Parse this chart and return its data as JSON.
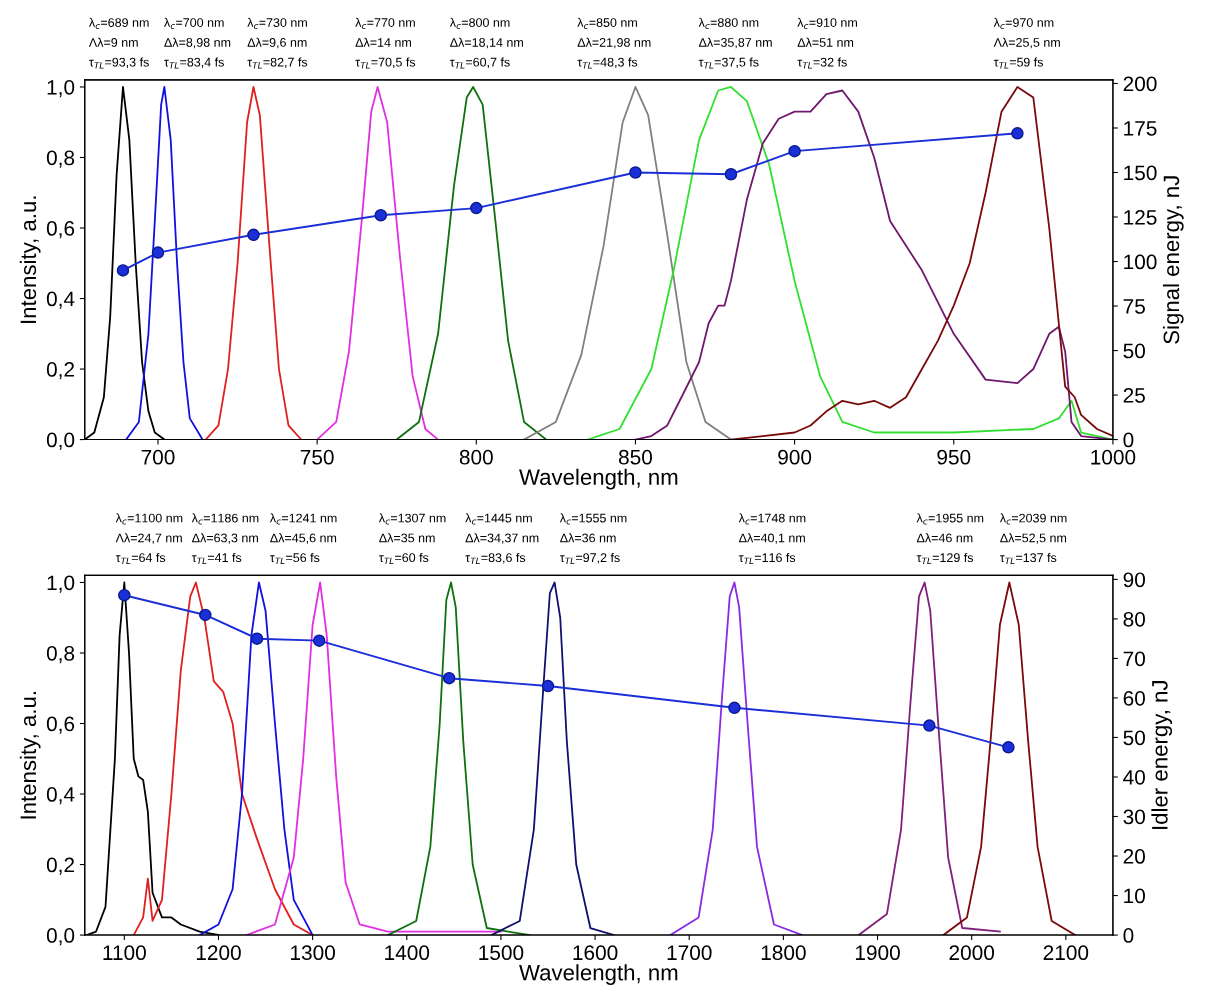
{
  "chart_data": [
    {
      "type": "line",
      "xlabel": "Wavelength, nm",
      "ylabel": "Intensity, a.u.",
      "y2label": "Signal energy, nJ",
      "xlim": [
        677,
        1000
      ],
      "xticks": [
        700,
        750,
        800,
        850,
        900,
        950,
        1000
      ],
      "ylim": [
        0,
        1.02
      ],
      "yticks": [
        {
          "value": 0,
          "label": "0,0"
        },
        {
          "value": 0.2,
          "label": "0,2"
        },
        {
          "value": 0.4,
          "label": "0,4"
        },
        {
          "value": 0.6,
          "label": "0,6"
        },
        {
          "value": 0.8,
          "label": "0,8"
        },
        {
          "value": 1.0,
          "label": "1,0"
        }
      ],
      "y2lim": [
        0,
        202
      ],
      "y2ticks": [
        0,
        25,
        50,
        75,
        100,
        125,
        150,
        175,
        200
      ],
      "grid": false,
      "legend": false,
      "series": [
        {
          "color": "#000000",
          "x": [
            677,
            680,
            683,
            685,
            687,
            689,
            691,
            693,
            695,
            697,
            699,
            702
          ],
          "values": [
            0,
            0.02,
            0.12,
            0.35,
            0.75,
            1.0,
            0.85,
            0.5,
            0.22,
            0.08,
            0.02,
            0
          ]
        },
        {
          "color": "#1010e0",
          "x": [
            690,
            694,
            697,
            699,
            701,
            702,
            704,
            706,
            708,
            710,
            714
          ],
          "values": [
            0,
            0.05,
            0.3,
            0.62,
            0.95,
            1.0,
            0.85,
            0.5,
            0.22,
            0.06,
            0
          ]
        },
        {
          "color": "#e02020",
          "x": [
            715,
            719,
            722,
            725,
            728,
            730,
            732,
            735,
            738,
            741,
            745
          ],
          "values": [
            0,
            0.04,
            0.2,
            0.5,
            0.9,
            1.0,
            0.92,
            0.55,
            0.2,
            0.04,
            0
          ]
        },
        {
          "color": "#e030e0",
          "x": [
            750,
            756,
            760,
            764,
            767,
            769,
            772,
            776,
            780,
            784,
            788
          ],
          "values": [
            0,
            0.05,
            0.25,
            0.62,
            0.93,
            1.0,
            0.9,
            0.52,
            0.18,
            0.03,
            0
          ]
        },
        {
          "color": "#107010",
          "x": [
            775,
            782,
            788,
            793,
            797,
            799,
            802,
            806,
            810,
            815,
            822
          ],
          "values": [
            0,
            0.05,
            0.3,
            0.72,
            0.97,
            1.0,
            0.95,
            0.62,
            0.28,
            0.05,
            0
          ]
        },
        {
          "color": "#808080",
          "x": [
            815,
            825,
            833,
            840,
            846,
            850,
            854,
            860,
            866,
            872,
            880
          ],
          "values": [
            0,
            0.05,
            0.24,
            0.55,
            0.9,
            1.0,
            0.92,
            0.58,
            0.22,
            0.05,
            0
          ]
        },
        {
          "color": "#30e030",
          "x": [
            835,
            845,
            855,
            862,
            870,
            876,
            880,
            885,
            892,
            900,
            908,
            915,
            925,
            950,
            975,
            983,
            987,
            990,
            1000
          ],
          "values": [
            0,
            0.03,
            0.2,
            0.48,
            0.85,
            0.99,
            1.0,
            0.96,
            0.78,
            0.45,
            0.18,
            0.05,
            0.02,
            0.02,
            0.03,
            0.06,
            0.11,
            0.02,
            0
          ]
        },
        {
          "color": "#70186e",
          "x": [
            850,
            855,
            860,
            865,
            870,
            873,
            876,
            878,
            880,
            885,
            890,
            895,
            900,
            905,
            910,
            915,
            920,
            925,
            930,
            940,
            950,
            960,
            970,
            975,
            980,
            983,
            985,
            987,
            990,
            1000
          ],
          "values": [
            0,
            0.01,
            0.04,
            0.13,
            0.22,
            0.33,
            0.38,
            0.38,
            0.45,
            0.68,
            0.84,
            0.91,
            0.93,
            0.93,
            0.98,
            0.99,
            0.93,
            0.8,
            0.62,
            0.48,
            0.3,
            0.17,
            0.16,
            0.2,
            0.3,
            0.32,
            0.25,
            0.05,
            0.01,
            0
          ]
        },
        {
          "color": "#7a0a0a",
          "x": [
            880,
            890,
            900,
            905,
            910,
            915,
            920,
            925,
            930,
            935,
            940,
            945,
            950,
            955,
            960,
            965,
            970,
            975,
            980,
            985,
            988,
            990,
            995,
            1000
          ],
          "values": [
            0,
            0.01,
            0.02,
            0.04,
            0.08,
            0.11,
            0.1,
            0.11,
            0.09,
            0.12,
            0.2,
            0.28,
            0.38,
            0.5,
            0.7,
            0.93,
            1.0,
            0.97,
            0.6,
            0.15,
            0.12,
            0.07,
            0.03,
            0.01
          ]
        },
        {
          "axis": "y2",
          "marker": "circle",
          "color": "#1a2fd8",
          "x": [
            689,
            700,
            730,
            770,
            800,
            850,
            880,
            900,
            970
          ],
          "values": [
            95,
            105,
            115,
            126,
            130,
            150,
            149,
            162,
            172
          ]
        }
      ],
      "annotations": [
        "λ$_{c}$=689 nm\nΛλ=9 nm\nτ$_{TL}$=93,3 fs",
        "λ$_{c}$=700 nm\nΔλ=8,98 nm\nτ$_{TL}$=83,4 fs",
        "λ$_{c}$=730 nm\nΔλ=9,6 nm\nτ$_{TL}$=82,7 fs",
        "λ$_{c}$=770 nm\nΔλ=14 nm\nτ$_{TL}$=70,5 fs",
        "λ$_{c}$=800 nm\nΔλ=18,14 nm\nτ$_{TL}$=60,7 fs",
        "λ$_{c}$=850 nm\nΔλ=21,98 nm\nτ$_{TL}$=48,3 fs",
        "λ$_{c}$=880 nm\nΔλ=35,87 nm\nτ$_{TL}$=37,5 fs",
        "λ$_{c}$=910 nm\nΔλ=51 nm\nτ$_{TL}$=32 fs",
        "λ$_{c}$=970 nm\nΛλ=25,5 nm\nτ$_{TL}$=59 fs"
      ]
    },
    {
      "type": "line",
      "xlabel": "Wavelength, nm",
      "ylabel": "Intensity, a.u.",
      "y2label": "Idler energy, nJ",
      "xlim": [
        1058,
        2150
      ],
      "xticks": [
        1100,
        1200,
        1300,
        1400,
        1500,
        1600,
        1700,
        1800,
        1900,
        2000,
        2100
      ],
      "ylim": [
        0,
        1.02
      ],
      "yticks": [
        {
          "value": 0,
          "label": "0,0"
        },
        {
          "value": 0.2,
          "label": "0,2"
        },
        {
          "value": 0.4,
          "label": "0,4"
        },
        {
          "value": 0.6,
          "label": "0,6"
        },
        {
          "value": 0.8,
          "label": "0,8"
        },
        {
          "value": 1.0,
          "label": "1,0"
        }
      ],
      "y2lim": [
        0,
        91
      ],
      "y2ticks": [
        0,
        10,
        20,
        30,
        40,
        50,
        60,
        70,
        80,
        90
      ],
      "grid": false,
      "legend": false,
      "series": [
        {
          "color": "#000000",
          "x": [
            1060,
            1070,
            1080,
            1090,
            1095,
            1100,
            1105,
            1110,
            1115,
            1120,
            1125,
            1130,
            1140,
            1150,
            1160,
            1180,
            1200
          ],
          "values": [
            0,
            0.01,
            0.08,
            0.5,
            0.85,
            1.0,
            0.8,
            0.5,
            0.45,
            0.44,
            0.35,
            0.12,
            0.05,
            0.05,
            0.03,
            0.01,
            0
          ]
        },
        {
          "color": "#e02020",
          "x": [
            1110,
            1120,
            1125,
            1130,
            1140,
            1150,
            1160,
            1170,
            1176,
            1185,
            1195,
            1205,
            1215,
            1225,
            1240,
            1260,
            1280,
            1300
          ],
          "values": [
            0,
            0.05,
            0.16,
            0.04,
            0.1,
            0.4,
            0.75,
            0.96,
            1.0,
            0.9,
            0.72,
            0.69,
            0.6,
            0.4,
            0.28,
            0.13,
            0.03,
            0
          ]
        },
        {
          "color": "#1010e0",
          "x": [
            1180,
            1200,
            1215,
            1225,
            1235,
            1243,
            1250,
            1260,
            1270,
            1280,
            1300
          ],
          "values": [
            0,
            0.03,
            0.13,
            0.4,
            0.85,
            1.0,
            0.92,
            0.6,
            0.3,
            0.1,
            0
          ]
        },
        {
          "color": "#e030e0",
          "x": [
            1230,
            1260,
            1280,
            1290,
            1300,
            1308,
            1315,
            1325,
            1335,
            1350,
            1380,
            1500
          ],
          "values": [
            0,
            0.03,
            0.22,
            0.5,
            0.88,
            1.0,
            0.85,
            0.45,
            0.15,
            0.03,
            0.01,
            0.01
          ]
        },
        {
          "color": "#107010",
          "x": [
            1380,
            1410,
            1425,
            1435,
            1442,
            1447,
            1452,
            1460,
            1470,
            1485,
            1530
          ],
          "values": [
            0,
            0.04,
            0.25,
            0.6,
            0.95,
            1.0,
            0.93,
            0.55,
            0.2,
            0.02,
            0
          ]
        },
        {
          "color": "#10106e",
          "x": [
            1490,
            1520,
            1535,
            1545,
            1552,
            1557,
            1563,
            1570,
            1580,
            1595,
            1620
          ],
          "values": [
            0,
            0.04,
            0.3,
            0.7,
            0.97,
            1.0,
            0.9,
            0.55,
            0.2,
            0.02,
            0
          ]
        },
        {
          "color": "#8a2be2",
          "x": [
            1680,
            1710,
            1725,
            1735,
            1743,
            1748,
            1753,
            1762,
            1772,
            1790,
            1820
          ],
          "values": [
            0,
            0.05,
            0.3,
            0.68,
            0.96,
            1.0,
            0.93,
            0.6,
            0.25,
            0.03,
            0
          ]
        },
        {
          "color": "#80207a",
          "x": [
            1880,
            1910,
            1925,
            1935,
            1944,
            1950,
            1956,
            1965,
            1975,
            1990,
            2030
          ],
          "values": [
            0,
            0.06,
            0.3,
            0.66,
            0.96,
            1.0,
            0.92,
            0.58,
            0.22,
            0.02,
            0.01
          ]
        },
        {
          "color": "#7a0a0a",
          "x": [
            1970,
            1995,
            2010,
            2020,
            2030,
            2040,
            2050,
            2060,
            2070,
            2085,
            2110
          ],
          "values": [
            0,
            0.05,
            0.25,
            0.55,
            0.88,
            1.0,
            0.88,
            0.55,
            0.25,
            0.04,
            0
          ]
        },
        {
          "axis": "y2",
          "marker": "circle",
          "color": "#1a2fd8",
          "x": [
            1100,
            1186,
            1241,
            1307,
            1445,
            1550,
            1748,
            1955,
            2039
          ],
          "values": [
            86,
            81,
            75,
            74.5,
            65,
            63,
            57.5,
            53,
            47.5
          ]
        }
      ],
      "annotations": [
        "λ$_{c}$=1100 nm\nΛλ=24,7 nm\nτ$_{TL}$=64 fs",
        "λ$_{c}$=1186 nm\nΔλ=63,3 nm\nτ$_{TL}$=41 fs",
        "λ$_{c}$=1241 nm\nΔλ=45,6 nm\nτ$_{TL}$=56 fs",
        "λ$_{c}$=1307 nm\nΔλ=35 nm\nτ$_{TL}$=60 fs",
        "λ$_{c}$=1445 nm\nΔλ=34,37 nm\nτ$_{TL}$=83,6 fs",
        "λ$_{c}$=1555 nm\nΔλ=36 nm\nτ$_{TL}$=97,2 fs",
        "λ$_{c}$=1748 nm\nΔλ=40,1 nm\nτ$_{TL}$=116 fs",
        "λ$_{c}$=1955 nm\nΔλ=46 nm\nτ$_{TL}$=129 fs",
        "λ$_{c}$=2039 nm\nΔλ=52,5 nm\nτ$_{TL}$=137 fs"
      ]
    }
  ]
}
